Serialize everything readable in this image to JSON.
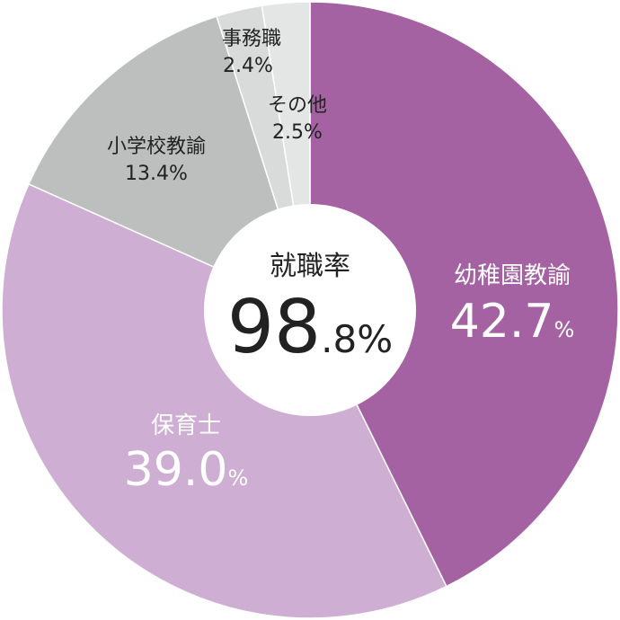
{
  "chart_data": {
    "type": "pie",
    "title": "",
    "center_label": "就職率",
    "center_value": "98",
    "center_value_small": ".8%",
    "slices": [
      {
        "name": "幼稚園教諭",
        "value": 42.7,
        "value_text": "42.7",
        "color": "#a462a2"
      },
      {
        "name": "保育士",
        "value": 39.0,
        "value_text": "39.0",
        "color": "#ceaed3"
      },
      {
        "name": "小学校教諭",
        "value": 13.4,
        "value_text": "13.4%",
        "color": "#bdbfbf"
      },
      {
        "name": "事務職",
        "value": 2.4,
        "value_text": "2.4%",
        "color": "#d9dada"
      },
      {
        "name": "その他",
        "value": 2.5,
        "value_text": "2.5%",
        "color": "#e4e5e5"
      }
    ],
    "percent_sign": "%"
  }
}
